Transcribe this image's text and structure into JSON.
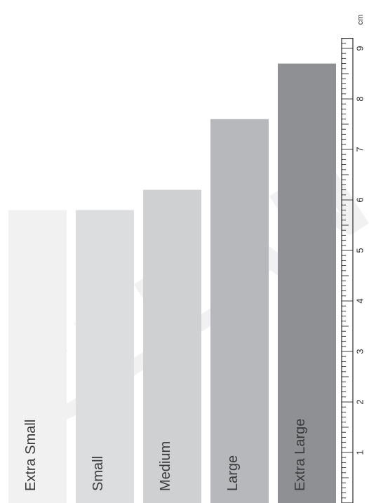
{
  "chart_data": {
    "type": "bar",
    "categories": [
      "Extra Small",
      "Small",
      "Medium",
      "Large",
      "Extra Large"
    ],
    "values": [
      5.8,
      5.8,
      6.2,
      7.6,
      8.7
    ],
    "colors": [
      "#f1f1f2",
      "#dcdddf",
      "#cfd0d2",
      "#b7b8bb",
      "#8f9093"
    ],
    "ylim": [
      0,
      9.2
    ],
    "ylabel": "cm",
    "ticks": [
      "1",
      "2",
      "3",
      "4",
      "5",
      "6",
      "7",
      "8",
      "9"
    ]
  },
  "watermark": {
    "text": "CLEAN B"
  }
}
